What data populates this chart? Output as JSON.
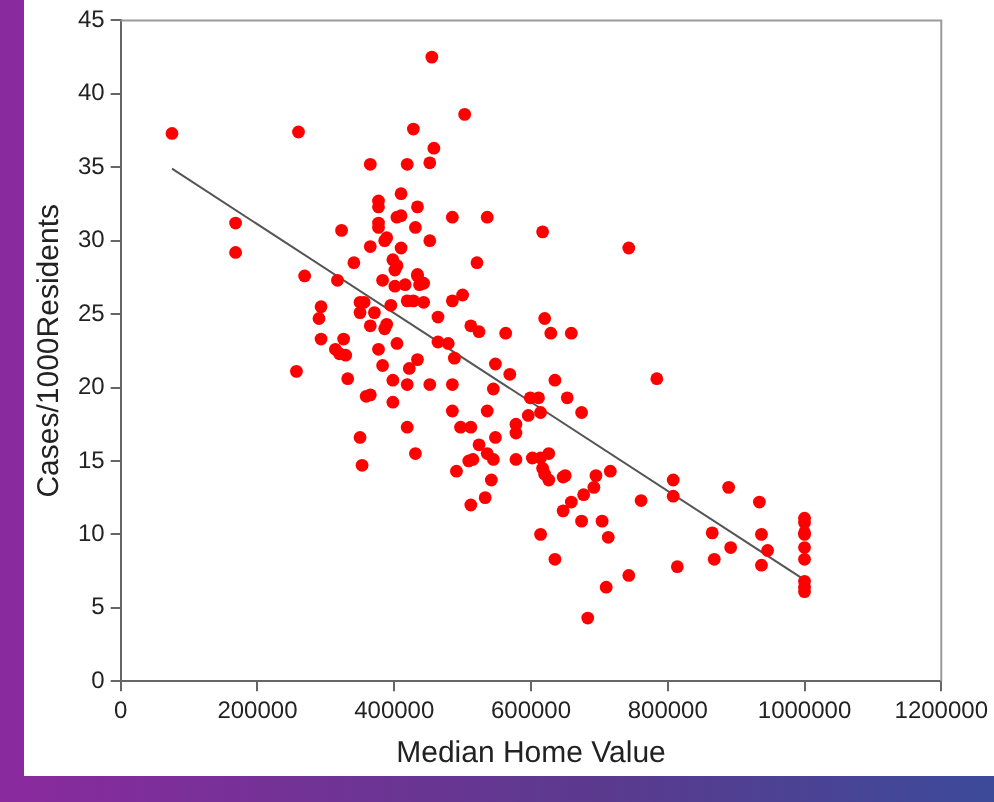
{
  "chart_data": {
    "type": "scatter",
    "xlabel": "Median Home Value",
    "ylabel": "Cases/1000Residents",
    "xlim": [
      0,
      1200000
    ],
    "xticks": [
      0,
      200000,
      400000,
      600000,
      800000,
      1000000,
      1200000
    ],
    "ylim": [
      0,
      45
    ],
    "yticks": [
      0,
      5,
      10,
      15,
      20,
      25,
      30,
      35,
      40,
      45
    ],
    "grid": false,
    "legend": false,
    "series": [
      {
        "type": "scatter",
        "color": "#ff0000",
        "marker": "circle",
        "x": [
          75000,
          168000,
          168000,
          260000,
          428000,
          365000,
          419000,
          410000,
          377000,
          377000,
          434000,
          404000,
          410000,
          377000,
          377000,
          323000,
          431000,
          389000,
          386000,
          365000,
          410000,
          341000,
          398000,
          404000,
          401000,
          269000,
          317000,
          383000,
          401000,
          416000,
          434000,
          437000,
          350000,
          356000,
          350000,
          371000,
          395000,
          419000,
          428000,
          293000,
          290000,
          365000,
          386000,
          293000,
          326000,
          377000,
          404000,
          314000,
          455000,
          503000,
          458000,
          452000,
          485000,
          536000,
          617000,
          743000,
          452000,
          521000,
          434000,
          443000,
          500000,
          485000,
          443000,
          464000,
          512000,
          524000,
          563000,
          620000,
          629000,
          659000,
          464000,
          479000,
          389000,
          434000,
          422000,
          383000,
          488000,
          548000,
          569000,
          398000,
          419000,
          452000,
          485000,
          545000,
          635000,
          784000,
          599000,
          611000,
          398000,
          653000,
          485000,
          536000,
          596000,
          614000,
          674000,
          419000,
          497000,
          512000,
          578000,
          578000,
          431000,
          548000,
          524000,
          536000,
          545000,
          509000,
          515000,
          491000,
          542000,
          578000,
          602000,
          614000,
          626000,
          617000,
          620000,
          626000,
          647000,
          650000,
          677000,
          695000,
          692000,
          716000,
          659000,
          647000,
          674000,
          512000,
          533000,
          704000,
          713000,
          761000,
          808000,
          808000,
          614000,
          635000,
          743000,
          710000,
          814000,
          683000,
          320000,
          329000,
          257000,
          332000,
          359000,
          365000,
          350000,
          353000,
          889000,
          934000,
          865000,
          937000,
          892000,
          946000,
          868000,
          937000,
          1000000,
          1000000,
          1000000,
          1000000,
          1000000,
          1000000,
          1000000,
          1000000,
          1000000
        ],
        "values": [
          37.3,
          31.2,
          29.2,
          37.4,
          37.6,
          35.2,
          35.2,
          33.2,
          32.7,
          32.3,
          32.3,
          31.6,
          31.7,
          31.2,
          30.9,
          30.7,
          30.9,
          30.2,
          30.0,
          29.6,
          29.5,
          28.5,
          28.7,
          28.3,
          28.0,
          27.6,
          27.3,
          27.3,
          26.9,
          27.0,
          27.6,
          27.0,
          25.8,
          25.8,
          25.1,
          25.1,
          25.6,
          25.9,
          25.9,
          25.5,
          24.7,
          24.2,
          24.0,
          23.3,
          23.3,
          22.6,
          23.0,
          22.6,
          42.5,
          38.6,
          36.3,
          35.3,
          31.6,
          31.6,
          30.6,
          29.5,
          30.0,
          28.5,
          27.7,
          27.1,
          26.3,
          25.9,
          25.8,
          24.8,
          24.2,
          23.8,
          23.7,
          24.7,
          23.7,
          23.7,
          23.1,
          23.0,
          24.3,
          21.9,
          21.3,
          21.5,
          22.0,
          21.6,
          20.9,
          20.5,
          20.2,
          20.2,
          20.2,
          19.9,
          20.5,
          20.6,
          19.3,
          19.3,
          19.0,
          19.3,
          18.4,
          18.4,
          18.1,
          18.3,
          18.3,
          17.3,
          17.3,
          17.3,
          17.5,
          16.9,
          15.5,
          16.6,
          16.1,
          15.5,
          15.1,
          15.0,
          15.1,
          14.3,
          13.7,
          15.1,
          15.2,
          15.2,
          15.5,
          14.5,
          14.1,
          13.7,
          13.9,
          14.0,
          12.7,
          14.0,
          13.2,
          14.3,
          12.2,
          11.6,
          10.9,
          12.0,
          12.5,
          10.9,
          9.8,
          12.3,
          13.7,
          12.6,
          10.0,
          8.3,
          7.2,
          6.4,
          7.8,
          4.3,
          22.3,
          22.2,
          21.1,
          20.6,
          19.4,
          19.5,
          16.6,
          14.7,
          13.2,
          12.2,
          10.1,
          10.0,
          9.1,
          8.9,
          8.3,
          7.9,
          11.1,
          10.8,
          10.1,
          10.0,
          9.1,
          8.3,
          6.8,
          6.4,
          6.1
        ]
      },
      {
        "type": "line",
        "color": "#555555",
        "marker": "none",
        "x": [
          75000,
          1000000
        ],
        "values": [
          34.9,
          6.9
        ]
      }
    ]
  }
}
